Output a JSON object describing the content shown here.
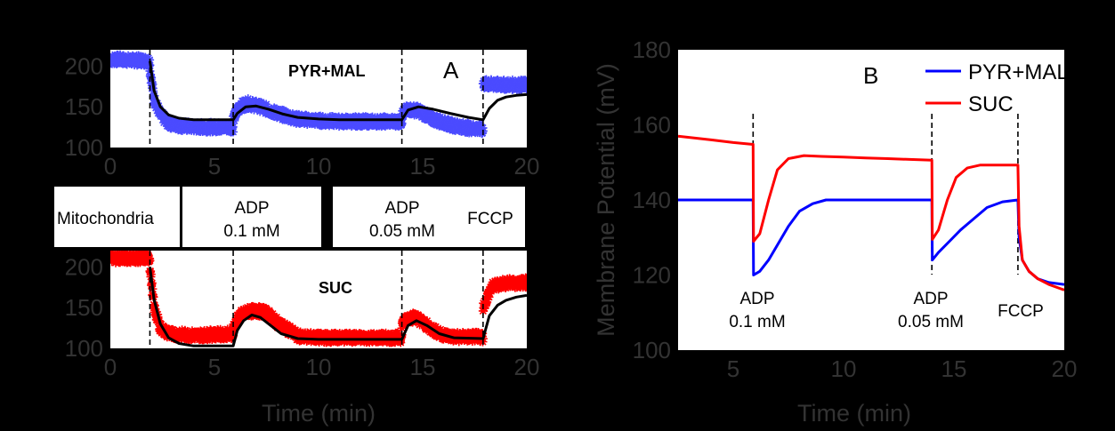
{
  "chart_data": [
    {
      "id": "A-top",
      "type": "line",
      "panel_label": "A",
      "annotation": "PYR+MAL",
      "xlim": [
        0,
        20
      ],
      "ylim": [
        100,
        220
      ],
      "xticks": [
        0,
        5,
        10,
        15,
        20
      ],
      "yticks": [
        100,
        150,
        200
      ],
      "xlabel": "",
      "event_lines_x": [
        1.9,
        5.9,
        14.0,
        17.9
      ],
      "marker_color": "#4b4bff",
      "series": [
        {
          "kind": "data-markers",
          "color": "#4b4bff",
          "segments": [
            {
              "x": [
                0,
                0.5,
                1.0,
                1.5,
                1.9
              ],
              "y": [
                208,
                208,
                207,
                207,
                206
              ]
            },
            {
              "x": [
                1.9,
                2.1,
                2.4,
                2.8,
                3.3,
                4.0,
                5.0,
                5.9
              ],
              "y": [
                195,
                160,
                140,
                130,
                127,
                125,
                125,
                125
              ]
            },
            {
              "x": [
                5.9,
                6.2,
                6.6,
                7.2,
                8.0,
                9.0,
                10.0,
                11.0,
                12.0,
                13.0,
                14.0
              ],
              "y": [
                135,
                150,
                154,
                150,
                142,
                135,
                133,
                132,
                132,
                132,
                132
              ]
            },
            {
              "x": [
                14.0,
                14.3,
                14.8,
                15.5,
                16.3,
                17.2,
                17.9
              ],
              "y": [
                140,
                147,
                145,
                135,
                128,
                124,
                122
              ]
            },
            {
              "x": [
                17.9,
                18.5,
                19.0,
                19.5,
                20.0
              ],
              "y": [
                178,
                177,
                177,
                177,
                177
              ]
            }
          ]
        },
        {
          "kind": "model",
          "color": "#000000",
          "x": [
            1.9,
            2.1,
            2.4,
            2.8,
            3.3,
            4.0,
            5.0,
            5.9,
            6.1,
            6.5,
            7.0,
            7.6,
            8.3,
            9.0,
            10.0,
            11.0,
            12.0,
            13.0,
            14.0,
            14.3,
            14.8,
            15.5,
            16.3,
            17.2,
            17.9,
            18.2,
            18.6,
            19.0,
            19.5,
            20.0
          ],
          "y": [
            206,
            170,
            150,
            140,
            136,
            134,
            134,
            134,
            142,
            150,
            151,
            147,
            141,
            137,
            135,
            134,
            134,
            134,
            134,
            146,
            150,
            147,
            142,
            137,
            134,
            148,
            158,
            162,
            164,
            165
          ]
        }
      ]
    },
    {
      "id": "A-bottom",
      "type": "line",
      "annotation": "SUC",
      "xlim": [
        0,
        20
      ],
      "ylim": [
        100,
        220
      ],
      "xticks": [
        0,
        5,
        10,
        15,
        20
      ],
      "yticks": [
        100,
        150,
        200
      ],
      "xlabel": "Time (min)",
      "event_lines_x": [
        1.9,
        5.9,
        14.0,
        17.9
      ],
      "series": [
        {
          "kind": "data-markers",
          "color": "#ff0000",
          "segments": [
            {
              "x": [
                0,
                0.5,
                1.0,
                1.5,
                1.9
              ],
              "y": [
                211,
                211,
                211,
                211,
                211
              ]
            },
            {
              "x": [
                1.9,
                2.1,
                2.4,
                2.8,
                3.3,
                4.0,
                5.0,
                5.9
              ],
              "y": [
                200,
                150,
                125,
                118,
                117,
                116,
                117,
                118
              ]
            },
            {
              "x": [
                5.9,
                6.2,
                6.6,
                7.0,
                7.5,
                8.0,
                9.0,
                10.0,
                11.0,
                12.0,
                13.0,
                14.0
              ],
              "y": [
                125,
                140,
                145,
                146,
                144,
                132,
                115,
                113,
                113,
                113,
                113,
                113
              ]
            },
            {
              "x": [
                14.0,
                14.3,
                14.7,
                15.2,
                15.8,
                16.5,
                17.9
              ],
              "y": [
                130,
                138,
                138,
                128,
                118,
                114,
                114
              ]
            },
            {
              "x": [
                17.9,
                18.3,
                18.8,
                19.4,
                20.0
              ],
              "y": [
                150,
                175,
                180,
                180,
                181
              ]
            }
          ]
        },
        {
          "kind": "model",
          "color": "#000000",
          "x": [
            1.9,
            2.1,
            2.4,
            2.8,
            3.3,
            4.0,
            5.0,
            5.9,
            6.1,
            6.4,
            6.8,
            7.2,
            7.7,
            8.2,
            9.0,
            10.0,
            11.0,
            12.0,
            13.0,
            14.0,
            14.3,
            14.7,
            15.2,
            15.8,
            16.5,
            17.9,
            18.2,
            18.6,
            19.0,
            19.5,
            20.0
          ],
          "y": [
            200,
            160,
            130,
            113,
            106,
            103,
            103,
            103,
            122,
            134,
            141,
            138,
            128,
            118,
            112,
            111,
            111,
            111,
            111,
            111,
            128,
            134,
            128,
            118,
            113,
            112,
            140,
            153,
            159,
            163,
            165
          ]
        }
      ]
    },
    {
      "id": "B",
      "type": "line",
      "panel_label": "B",
      "xlim": [
        2.5,
        20
      ],
      "ylim": [
        100,
        180
      ],
      "xticks": [
        5,
        10,
        15,
        20
      ],
      "yticks": [
        100,
        120,
        140,
        160,
        180
      ],
      "xlabel": "Time (min)",
      "ylabel": "Membrane Potential (mV)",
      "event_lines_x": [
        5.9,
        14.0,
        17.9
      ],
      "legend": {
        "placement": "top-right"
      },
      "series": [
        {
          "name": "PYR+MAL",
          "color": "#0000ff",
          "x": [
            2.5,
            4.0,
            5.0,
            5.9,
            5.92,
            6.2,
            6.6,
            7.0,
            7.5,
            8.0,
            8.6,
            9.2,
            10.0,
            11.0,
            12.0,
            13.0,
            14.0,
            14.02,
            14.3,
            14.8,
            15.3,
            15.9,
            16.5,
            17.2,
            17.9,
            17.95,
            18.1,
            18.4,
            18.8,
            19.3,
            20.0
          ],
          "y": [
            140,
            140,
            140,
            140,
            120,
            121,
            124,
            128,
            133,
            137,
            139,
            140,
            140,
            140,
            140,
            140,
            140,
            124,
            126,
            129,
            132,
            135,
            138,
            139.5,
            140,
            130,
            124,
            121,
            119,
            118,
            117.5
          ]
        },
        {
          "name": "SUC",
          "color": "#ff0000",
          "x": [
            2.5,
            4.0,
            5.0,
            5.9,
            5.92,
            6.2,
            6.6,
            7.0,
            7.5,
            8.2,
            9.0,
            10.0,
            11.0,
            12.0,
            13.0,
            14.0,
            14.02,
            14.3,
            14.7,
            15.1,
            15.6,
            16.2,
            17.0,
            17.9,
            17.95,
            18.1,
            18.4,
            18.8,
            19.3,
            20.0
          ],
          "y": [
            157,
            156,
            155.3,
            154.8,
            129,
            131,
            140,
            148,
            151,
            151.8,
            151.6,
            151.4,
            151.2,
            151,
            150.8,
            150.6,
            129.5,
            132,
            140,
            146,
            148.5,
            149.3,
            149.3,
            149.3,
            133,
            124,
            121,
            119,
            117.5,
            116
          ]
        }
      ]
    }
  ],
  "event_boxes": [
    {
      "line1": "Mitochondria",
      "line2": ""
    },
    {
      "line1": "ADP",
      "line2": "0.1 mM"
    },
    {
      "line1": "ADP",
      "line2": "0.05 mM"
    },
    {
      "line1": "FCCP",
      "line2": ""
    }
  ],
  "panel_b_event_labels": [
    {
      "line1": "ADP",
      "line2": "0.1 mM"
    },
    {
      "line1": "ADP",
      "line2": "0.05 mM"
    },
    {
      "line1": "FCCP",
      "line2": ""
    }
  ]
}
